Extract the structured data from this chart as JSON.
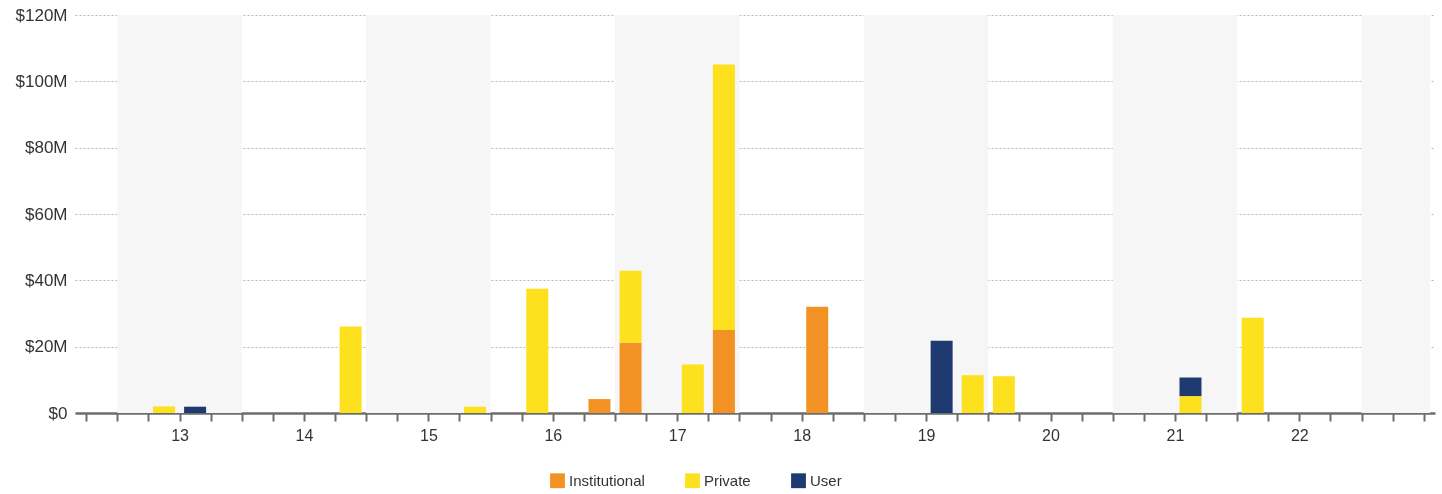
{
  "chart_data": {
    "type": "bar",
    "stacked": true,
    "x": [
      13.375,
      13.625,
      14.875,
      15.875,
      16.375,
      16.875,
      17.125,
      17.625,
      17.875,
      18.625,
      19.625,
      19.875,
      20.125,
      21.625,
      22.125
    ],
    "series": [
      {
        "name": "Institutional",
        "color": "#f39224",
        "values": [
          null,
          null,
          null,
          null,
          null,
          4.2,
          21.2,
          null,
          25.0,
          32.0,
          null,
          null,
          null,
          null,
          null
        ]
      },
      {
        "name": "Private",
        "color": "#fde01e",
        "values": [
          2.0,
          null,
          26.1,
          1.9,
          37.5,
          null,
          21.7,
          14.6,
          80.1,
          null,
          null,
          11.4,
          11.1,
          5.1,
          28.7
        ]
      },
      {
        "name": "User",
        "color": "#1f3a70",
        "values": [
          null,
          1.9,
          null,
          null,
          null,
          null,
          null,
          null,
          null,
          null,
          21.8,
          null,
          null,
          5.6,
          null
        ]
      }
    ],
    "xlim": [
      12.7,
      23.55
    ],
    "xticks": [
      {
        "value": 12.75,
        "label": null
      },
      {
        "value": 13,
        "label": null
      },
      {
        "value": 13.25,
        "label": null
      },
      {
        "value": 13.5,
        "label": "13"
      },
      {
        "value": 13.75,
        "label": null
      },
      {
        "value": 14,
        "label": null
      },
      {
        "value": 14.25,
        "label": null
      },
      {
        "value": 14.5,
        "label": "14"
      },
      {
        "value": 14.75,
        "label": null
      },
      {
        "value": 15,
        "label": null
      },
      {
        "value": 15.25,
        "label": null
      },
      {
        "value": 15.5,
        "label": "15"
      },
      {
        "value": 15.75,
        "label": null
      },
      {
        "value": 16,
        "label": null
      },
      {
        "value": 16.25,
        "label": null
      },
      {
        "value": 16.5,
        "label": "16"
      },
      {
        "value": 16.75,
        "label": null
      },
      {
        "value": 17,
        "label": null
      },
      {
        "value": 17.25,
        "label": null
      },
      {
        "value": 17.5,
        "label": "17"
      },
      {
        "value": 17.75,
        "label": null
      },
      {
        "value": 18,
        "label": null
      },
      {
        "value": 18.25,
        "label": null
      },
      {
        "value": 18.5,
        "label": "18"
      },
      {
        "value": 18.75,
        "label": null
      },
      {
        "value": 19,
        "label": null
      },
      {
        "value": 19.25,
        "label": null
      },
      {
        "value": 19.5,
        "label": "19"
      },
      {
        "value": 19.75,
        "label": null
      },
      {
        "value": 20,
        "label": null
      },
      {
        "value": 20.25,
        "label": null
      },
      {
        "value": 20.5,
        "label": "20"
      },
      {
        "value": 20.75,
        "label": null
      },
      {
        "value": 21,
        "label": null
      },
      {
        "value": 21.25,
        "label": null
      },
      {
        "value": 21.5,
        "label": "21"
      },
      {
        "value": 21.75,
        "label": null
      },
      {
        "value": 22,
        "label": null
      },
      {
        "value": 22.25,
        "label": null
      },
      {
        "value": 22.5,
        "label": "22"
      },
      {
        "value": 22.75,
        "label": null
      },
      {
        "value": 23,
        "label": null
      },
      {
        "value": 23.25,
        "label": null
      },
      {
        "value": 23.5,
        "label": null
      }
    ],
    "ylim": [
      0,
      120
    ],
    "yticks": [
      {
        "value": 0,
        "label": "$0"
      },
      {
        "value": 20,
        "label": "$20M"
      },
      {
        "value": 40,
        "label": "$40M"
      },
      {
        "value": 60,
        "label": "$60M"
      },
      {
        "value": 80,
        "label": "$80M"
      },
      {
        "value": 100,
        "label": "$100M"
      },
      {
        "value": 120,
        "label": "$120M"
      }
    ],
    "bands": [
      {
        "axis": "x",
        "from": 13,
        "to": 14,
        "color": "#f6f6f6"
      },
      {
        "axis": "x",
        "from": 15,
        "to": 16,
        "color": "#f6f6f6"
      },
      {
        "axis": "x",
        "from": 17,
        "to": 18,
        "color": "#f6f6f6"
      },
      {
        "axis": "x",
        "from": 19,
        "to": 20,
        "color": "#f6f6f6"
      },
      {
        "axis": "x",
        "from": 21,
        "to": 22,
        "color": "#f6f6f6"
      },
      {
        "axis": "x",
        "from": 23,
        "to": 23.55,
        "color": "#f6f6f6"
      }
    ],
    "grid": "y",
    "legend": "bottom"
  }
}
